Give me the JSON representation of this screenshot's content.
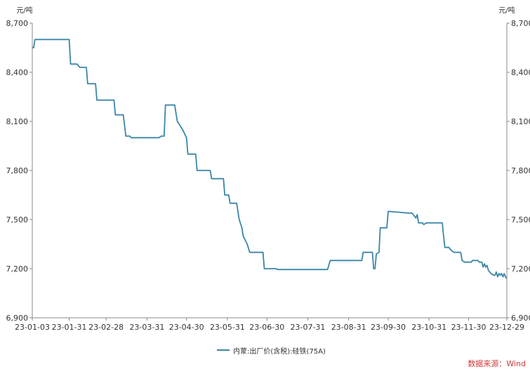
{
  "chart_data": {
    "type": "line",
    "y_unit_left": "元/吨",
    "y_unit_right": "元/吨",
    "yticks": [
      "6,900",
      "7,200",
      "7,500",
      "7,800",
      "8,100",
      "8,400",
      "8,700"
    ],
    "ytick_values": [
      6900,
      7200,
      7500,
      7800,
      8100,
      8400,
      8700
    ],
    "ylim": [
      6900,
      8700
    ],
    "xticks": [
      "23-01-03",
      "23-01-31",
      "23-02-28",
      "23-03-31",
      "23-04-30",
      "23-05-31",
      "23-06-30",
      "23-07-31",
      "23-08-31",
      "23-09-30",
      "23-10-31",
      "23-11-30",
      "23-12-29"
    ],
    "grid": false,
    "legend_position": "bottom",
    "series": [
      {
        "name": "内蒙:出厂价(含税):硅铁(75A)",
        "color": "#3b86a6",
        "points": [
          [
            "23-01-03",
            8550
          ],
          [
            "23-01-04",
            8550
          ],
          [
            "23-01-05",
            8600
          ],
          [
            "23-01-31",
            8600
          ],
          [
            "23-02-01",
            8450
          ],
          [
            "23-02-06",
            8450
          ],
          [
            "23-02-08",
            8430
          ],
          [
            "23-02-13",
            8430
          ],
          [
            "23-02-14",
            8330
          ],
          [
            "23-02-20",
            8330
          ],
          [
            "23-02-21",
            8230
          ],
          [
            "23-03-06",
            8230
          ],
          [
            "23-03-07",
            8140
          ],
          [
            "23-03-13",
            8140
          ],
          [
            "23-03-15",
            8010
          ],
          [
            "23-03-18",
            8010
          ],
          [
            "23-03-19",
            8000
          ],
          [
            "23-04-09",
            8000
          ],
          [
            "23-04-11",
            8010
          ],
          [
            "23-04-13",
            8010
          ],
          [
            "23-04-14",
            8200
          ],
          [
            "23-04-21",
            8200
          ],
          [
            "23-04-23",
            8100
          ],
          [
            "23-04-27",
            8050
          ],
          [
            "23-04-30",
            8000
          ],
          [
            "23-05-01",
            7900
          ],
          [
            "23-05-07",
            7900
          ],
          [
            "23-05-08",
            7800
          ],
          [
            "23-05-18",
            7800
          ],
          [
            "23-05-19",
            7750
          ],
          [
            "23-05-28",
            7750
          ],
          [
            "23-05-29",
            7650
          ],
          [
            "23-06-01",
            7650
          ],
          [
            "23-06-02",
            7600
          ],
          [
            "23-06-07",
            7600
          ],
          [
            "23-06-09",
            7500
          ],
          [
            "23-06-11",
            7450
          ],
          [
            "23-06-12",
            7400
          ],
          [
            "23-06-15",
            7350
          ],
          [
            "23-06-17",
            7300
          ],
          [
            "23-06-27",
            7300
          ],
          [
            "23-06-28",
            7200
          ],
          [
            "23-07-07",
            7200
          ],
          [
            "23-07-08",
            7195
          ],
          [
            "23-08-15",
            7195
          ],
          [
            "23-08-17",
            7250
          ],
          [
            "23-09-10",
            7250
          ],
          [
            "23-09-11",
            7300
          ],
          [
            "23-09-18",
            7300
          ],
          [
            "23-09-19",
            7200
          ],
          [
            "23-09-20",
            7200
          ],
          [
            "23-09-21",
            7290
          ],
          [
            "23-09-23",
            7300
          ],
          [
            "23-09-24",
            7450
          ],
          [
            "23-09-29",
            7450
          ],
          [
            "23-09-30",
            7550
          ],
          [
            "23-10-08",
            7545
          ],
          [
            "23-10-15",
            7540
          ],
          [
            "23-10-18",
            7540
          ],
          [
            "23-10-19",
            7530
          ],
          [
            "23-10-21",
            7510
          ],
          [
            "23-10-22",
            7530
          ],
          [
            "23-10-23",
            7480
          ],
          [
            "23-10-26",
            7480
          ],
          [
            "23-10-27",
            7470
          ],
          [
            "23-10-29",
            7480
          ],
          [
            "23-11-10",
            7480
          ],
          [
            "23-11-11",
            7400
          ],
          [
            "23-11-12",
            7330
          ],
          [
            "23-11-15",
            7330
          ],
          [
            "23-11-17",
            7310
          ],
          [
            "23-11-19",
            7300
          ],
          [
            "23-11-24",
            7300
          ],
          [
            "23-11-25",
            7250
          ],
          [
            "23-11-27",
            7240
          ],
          [
            "23-12-02",
            7240
          ],
          [
            "23-12-03",
            7250
          ],
          [
            "23-12-07",
            7250
          ],
          [
            "23-12-08",
            7240
          ],
          [
            "23-12-10",
            7240
          ],
          [
            "23-12-11",
            7210
          ],
          [
            "23-12-12",
            7230
          ],
          [
            "23-12-13",
            7210
          ],
          [
            "23-12-14",
            7220
          ],
          [
            "23-12-15",
            7190
          ],
          [
            "23-12-17",
            7170
          ],
          [
            "23-12-19",
            7160
          ],
          [
            "23-12-20",
            7160
          ],
          [
            "23-12-21",
            7180
          ],
          [
            "23-12-22",
            7150
          ],
          [
            "23-12-23",
            7170
          ],
          [
            "23-12-24",
            7160
          ],
          [
            "23-12-25",
            7170
          ],
          [
            "23-12-26",
            7150
          ],
          [
            "23-12-27",
            7170
          ],
          [
            "23-12-28",
            7150
          ],
          [
            "23-12-29",
            7140
          ]
        ]
      }
    ]
  },
  "source_note": "数据来源：Wind"
}
